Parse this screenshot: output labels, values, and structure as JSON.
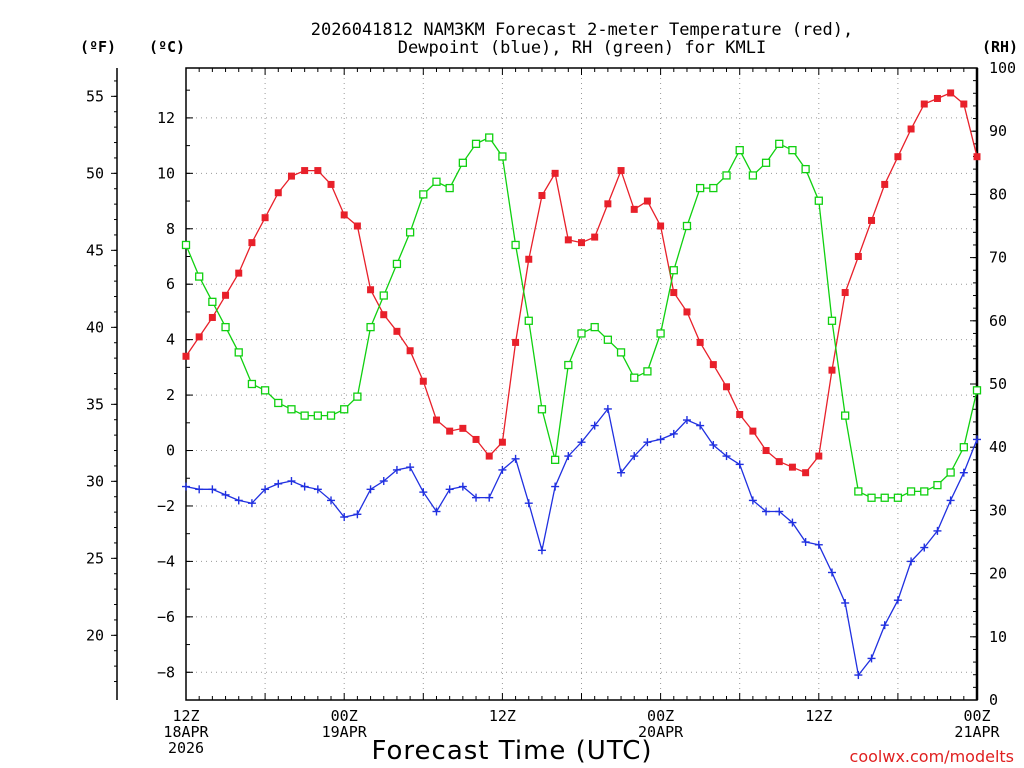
{
  "chart_data": {
    "type": "line",
    "title_line1": "2026041812 NAM3KM Forecast 2-meter Temperature (red),",
    "title_line2": "Dewpoint (blue), RH (green) for KMLI",
    "xlabel": "Forecast Time (UTC)",
    "credit": "coolwx.com/modelts",
    "units": {
      "fahrenheit": "(ºF)",
      "celsius": "(ºC)",
      "rh": "(RH)"
    },
    "x_range_hours": [
      0,
      60
    ],
    "celsius_range": [
      -9.0,
      13.8
    ],
    "rh_range": [
      0,
      100
    ],
    "x_ticks": [
      {
        "hour": 0,
        "line1": "12Z",
        "line2": "18APR",
        "line3": "2026"
      },
      {
        "hour": 12,
        "line1": "00Z",
        "line2": "19APR",
        "line3": ""
      },
      {
        "hour": 24,
        "line1": "12Z",
        "line2": "",
        "line3": ""
      },
      {
        "hour": 36,
        "line1": "00Z",
        "line2": "20APR",
        "line3": ""
      },
      {
        "hour": 48,
        "line1": "12Z",
        "line2": "",
        "line3": ""
      },
      {
        "hour": 60,
        "line1": "00Z",
        "line2": "21APR",
        "line3": ""
      }
    ],
    "celsius_ticks": [
      "−8",
      "−6",
      "−4",
      "−2",
      "0",
      "2",
      "4",
      "6",
      "8",
      "10",
      "12"
    ],
    "celsius_tick_values": [
      -8,
      -6,
      -4,
      -2,
      0,
      2,
      4,
      6,
      8,
      10,
      12
    ],
    "fahrenheit_ticks": [
      "20",
      "25",
      "30",
      "35",
      "40",
      "45",
      "50",
      "55"
    ],
    "fahrenheit_tick_values": [
      20,
      25,
      30,
      35,
      40,
      45,
      50,
      55
    ],
    "rh_ticks": [
      "0",
      "10",
      "20",
      "30",
      "40",
      "50",
      "60",
      "70",
      "80",
      "90",
      "100"
    ],
    "rh_tick_values": [
      0,
      10,
      20,
      30,
      40,
      50,
      60,
      70,
      80,
      90,
      100
    ],
    "series": [
      {
        "name": "Temperature",
        "axis": "celsius",
        "color": "#e8202a",
        "marker": "filled-square",
        "values": [
          3.4,
          4.1,
          4.8,
          5.6,
          6.4,
          7.5,
          8.4,
          9.3,
          9.9,
          10.1,
          10.1,
          9.6,
          8.5,
          8.1,
          5.8,
          4.9,
          4.3,
          3.6,
          2.5,
          1.1,
          0.7,
          0.8,
          0.4,
          -0.2,
          0.3,
          3.9,
          6.9,
          9.2,
          10.0,
          7.6,
          7.5,
          7.7,
          8.9,
          10.1,
          8.7,
          9.0,
          8.1,
          5.7,
          5.0,
          3.9,
          3.1,
          2.3,
          1.3,
          0.7,
          0.0,
          -0.4,
          -0.6,
          -0.8,
          -0.2,
          2.9,
          5.7,
          7.0,
          8.3,
          9.6,
          10.6,
          11.6,
          12.5,
          12.7,
          12.9,
          12.5,
          10.6
        ]
      },
      {
        "name": "Dewpoint",
        "axis": "celsius",
        "color": "#2030e0",
        "marker": "plus",
        "values": [
          -1.3,
          -1.4,
          -1.4,
          -1.6,
          -1.8,
          -1.9,
          -1.4,
          -1.2,
          -1.1,
          -1.3,
          -1.4,
          -1.8,
          -2.4,
          -2.3,
          -1.4,
          -1.1,
          -0.7,
          -0.6,
          -1.5,
          -2.2,
          -1.4,
          -1.3,
          -1.7,
          -1.7,
          -0.7,
          -0.3,
          -1.9,
          -3.6,
          -1.3,
          -0.2,
          0.3,
          0.9,
          1.5,
          -0.8,
          -0.2,
          0.3,
          0.4,
          0.6,
          1.1,
          0.9,
          0.2,
          -0.2,
          -0.5,
          -1.8,
          -2.2,
          -2.2,
          -2.6,
          -3.3,
          -3.4,
          -4.4,
          -5.5,
          -8.1,
          -7.5,
          -6.3,
          -5.4,
          -4.0,
          -3.5,
          -2.9,
          -1.8,
          -0.8,
          0.4
        ]
      },
      {
        "name": "RH",
        "axis": "rh",
        "color": "#10d010",
        "marker": "open-square",
        "values": [
          72,
          67,
          63,
          59,
          55,
          50,
          49,
          47,
          46,
          45,
          45,
          45,
          46,
          48,
          59,
          64,
          69,
          74,
          80,
          82,
          81,
          85,
          88,
          89,
          86,
          72,
          60,
          46,
          38,
          53,
          58,
          59,
          57,
          55,
          51,
          52,
          58,
          68,
          75,
          81,
          81,
          83,
          87,
          83,
          85,
          88,
          87,
          84,
          79,
          60,
          45,
          33,
          32,
          32,
          32,
          33,
          33,
          34,
          36,
          40,
          49
        ]
      }
    ]
  }
}
